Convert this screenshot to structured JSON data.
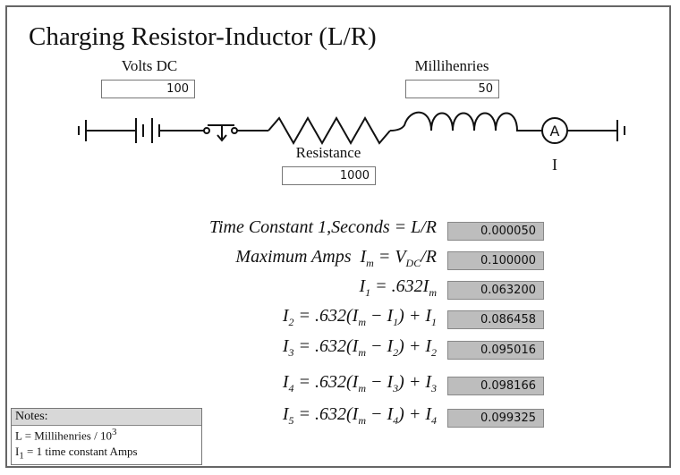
{
  "title": "Charging Resistor-Inductor (L/R)",
  "inputs": {
    "volts": {
      "label": "Volts DC",
      "value": 100
    },
    "millihenries": {
      "label": "Millihenries",
      "value": 50
    },
    "resistance": {
      "label": "Resistance",
      "value": 1000
    }
  },
  "ammeter": {
    "symbol": "A",
    "label": "I"
  },
  "results": [
    {
      "formula": [
        {
          "text": "Time Constant 1,Seconds = L/R"
        }
      ],
      "value": "0.000050"
    },
    {
      "formula": [
        {
          "text": "Maximum Amps  I",
          "sub": "m"
        },
        {
          "text": " = V",
          "sub": "DC"
        },
        {
          "text": "/R"
        }
      ],
      "value": "0.100000"
    },
    {
      "formula": [
        {
          "text": "I",
          "sub": "1"
        },
        {
          "text": " = .632I",
          "sub": "m"
        }
      ],
      "value": "0.063200"
    },
    {
      "formula": [
        {
          "text": "I",
          "sub": "2"
        },
        {
          "text": " = .632(I",
          "sub": "m"
        },
        {
          "text": " − I",
          "sub": "1"
        },
        {
          "text": ") + I",
          "sub": "1"
        }
      ],
      "value": "0.086458"
    },
    {
      "formula": [
        {
          "text": "I",
          "sub": "3"
        },
        {
          "text": " = .632(I",
          "sub": "m"
        },
        {
          "text": " − I",
          "sub": "2"
        },
        {
          "text": ") + I",
          "sub": "2"
        }
      ],
      "value": "0.095016"
    },
    {
      "formula": [
        {
          "text": "I",
          "sub": "4"
        },
        {
          "text": " = .632(I",
          "sub": "m"
        },
        {
          "text": " − I",
          "sub": "3"
        },
        {
          "text": ") + I",
          "sub": "3"
        }
      ],
      "value": "0.098166"
    },
    {
      "formula": [
        {
          "text": "I",
          "sub": "5"
        },
        {
          "text": " = .632(I",
          "sub": "m"
        },
        {
          "text": " − I",
          "sub": "4"
        },
        {
          "text": ") + I",
          "sub": "4"
        }
      ],
      "value": "0.099325"
    }
  ],
  "notes": {
    "header": "Notes:",
    "line1": {
      "text": "L = Millihenries / 10",
      "sup": "3"
    },
    "line2": {
      "text": "I",
      "sub": "1",
      "rest": " = 1 time constant Amps"
    }
  }
}
